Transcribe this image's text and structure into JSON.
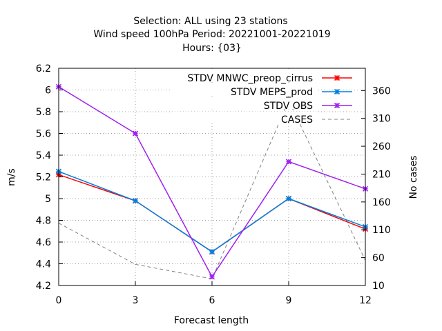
{
  "chart_data": {
    "type": "line",
    "title_lines": [
      "Selection: ALL using    23 stations",
      "Wind speed 100hPa   Period: 20221001-20221019",
      "Hours: {03}"
    ],
    "xlabel": "Forecast length",
    "ylabel": "m/s",
    "y2label": "No cases",
    "x": [
      0,
      3,
      6,
      9,
      12
    ],
    "xlim": [
      0,
      12
    ],
    "ylim": [
      4.2,
      6.2
    ],
    "y2lim": [
      10,
      400
    ],
    "xticks": [
      "0",
      "3",
      "6",
      "9",
      "12"
    ],
    "yticks": [
      "4.2",
      "4.4",
      "4.6",
      "4.8",
      "5",
      "5.2",
      "5.4",
      "5.6",
      "5.8",
      "6",
      "6.2"
    ],
    "y2ticks": [
      "10",
      "60",
      "110",
      "160",
      "210",
      "260",
      "310",
      "360"
    ],
    "grid": true,
    "legend_position": "top-right",
    "series": [
      {
        "name": "STDV MNWC_preop_cirrus",
        "color": "#ff0000",
        "axis": "y",
        "marker": "x",
        "values": [
          5.22,
          4.98,
          4.51,
          5.0,
          4.72
        ]
      },
      {
        "name": "STDV MEPS_prod",
        "color": "#0080e0",
        "axis": "y",
        "marker": "x",
        "values": [
          5.25,
          4.98,
          4.51,
          5.0,
          4.74
        ]
      },
      {
        "name": "STDV OBS",
        "color": "#a020f0",
        "axis": "y",
        "marker": "x",
        "values": [
          6.03,
          5.6,
          4.28,
          5.34,
          5.09
        ]
      },
      {
        "name": "CASES",
        "color": "#808080",
        "axis": "y2",
        "dashed": true,
        "values": [
          122,
          48,
          22,
          342,
          55
        ]
      }
    ]
  }
}
